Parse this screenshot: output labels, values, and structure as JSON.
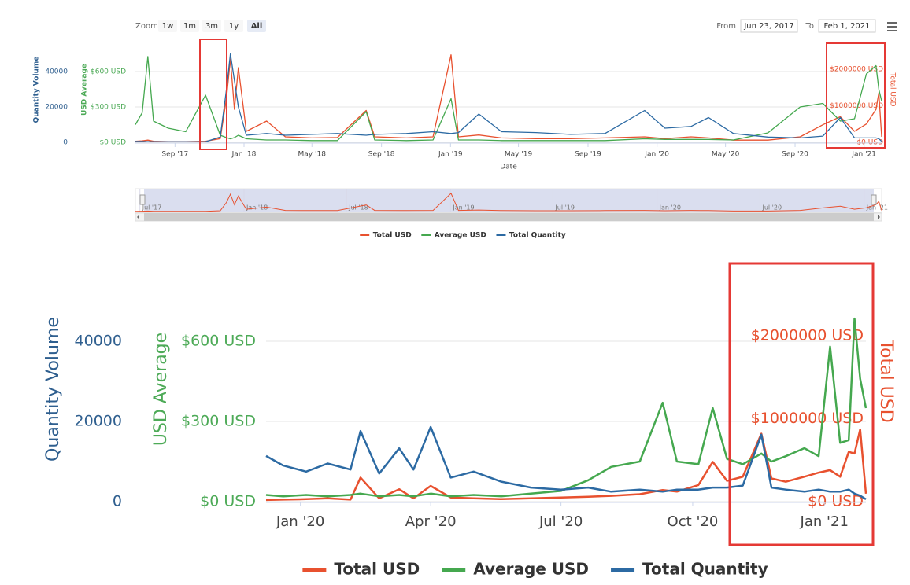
{
  "range_selector": {
    "zoom_label": "Zoom",
    "buttons": [
      "1w",
      "1m",
      "3m",
      "1y",
      "All"
    ],
    "selected": "All",
    "from_label": "From",
    "from": "Jun 23, 2017",
    "to_label": "To",
    "to": "Feb 1, 2021"
  },
  "chart_data": [
    {
      "type": "line",
      "x_title": "Date",
      "y_title": "Quantity Volume",
      "y3_title": "USD Average",
      "y2_title": "Total USD",
      "x": [
        "2017-06-23",
        "2017-07-05",
        "2017-07-15",
        "2017-07-25",
        "2017-08-20",
        "2017-09-20",
        "2017-10-25",
        "2017-11-20",
        "2017-12-01",
        "2017-12-08",
        "2017-12-15",
        "2017-12-22",
        "2018-01-05",
        "2018-02-10",
        "2018-03-15",
        "2018-05-01",
        "2018-06-15",
        "2018-08-05",
        "2018-08-20",
        "2018-10-15",
        "2018-12-01",
        "2019-01-02",
        "2019-01-15",
        "2019-02-20",
        "2019-04-01",
        "2019-06-01",
        "2019-08-01",
        "2019-10-01",
        "2019-12-10",
        "2020-01-15",
        "2020-03-01",
        "2020-04-01",
        "2020-05-15",
        "2020-07-15",
        "2020-09-10",
        "2020-10-20",
        "2020-11-20",
        "2020-12-15",
        "2021-01-05",
        "2021-01-22",
        "2021-01-27",
        "2021-02-01"
      ],
      "xlim": [
        "2017-06-23",
        "2021-02-01"
      ],
      "xticks": [
        {
          "value": "2017-09-01",
          "label": "Sep '17"
        },
        {
          "value": "2018-01-01",
          "label": "Jan '18"
        },
        {
          "value": "2018-05-01",
          "label": "May '18"
        },
        {
          "value": "2018-09-01",
          "label": "Sep '18"
        },
        {
          "value": "2019-01-01",
          "label": "Jan '19"
        },
        {
          "value": "2019-05-01",
          "label": "May '19"
        },
        {
          "value": "2019-09-01",
          "label": "Sep '19"
        },
        {
          "value": "2020-01-01",
          "label": "Jan '20"
        },
        {
          "value": "2020-05-01",
          "label": "May '20"
        },
        {
          "value": "2020-09-01",
          "label": "Sep '20"
        },
        {
          "value": "2021-01-01",
          "label": "Jan '21"
        }
      ],
      "ylim": [
        0,
        60000
      ],
      "yticks": [
        0,
        20000,
        40000
      ],
      "y3lim": [
        0,
        900
      ],
      "y3ticks": [
        {
          "value": 0,
          "label": "$0 USD"
        },
        {
          "value": 300,
          "label": "$300 USD"
        },
        {
          "value": 600,
          "label": "$600 USD"
        }
      ],
      "y2lim": [
        0,
        2900000
      ],
      "y2ticks": [
        {
          "value": 0,
          "label": "$0 USD"
        },
        {
          "value": 1000000,
          "label": "$1000000 USD"
        },
        {
          "value": 2000000,
          "label": "$2000000 USD"
        }
      ],
      "grid": true,
      "legend": "bottom",
      "series": [
        {
          "name": "Total USD",
          "color": "#e8512f",
          "axis": "y2",
          "values": [
            30000,
            40000,
            60000,
            30000,
            20000,
            20000,
            30000,
            100000,
            1200000,
            2280000,
            900000,
            2040000,
            300000,
            580000,
            150000,
            120000,
            130000,
            870000,
            150000,
            120000,
            150000,
            2390000,
            150000,
            200000,
            120000,
            100000,
            100000,
            120000,
            150000,
            100000,
            150000,
            120000,
            60000,
            60000,
            150000,
            480000,
            700000,
            300000,
            500000,
            900000,
            1350000,
            150000
          ]
        },
        {
          "name": "Average USD",
          "color": "#45a84f",
          "axis": "y3",
          "values": [
            150,
            250,
            727,
            180,
            120,
            90,
            400,
            60,
            40,
            30,
            40,
            60,
            30,
            20,
            20,
            15,
            15,
            260,
            20,
            15,
            20,
            370,
            20,
            20,
            15,
            15,
            15,
            15,
            30,
            25,
            25,
            25,
            20,
            80,
            300,
            330,
            180,
            200,
            580,
            650,
            450,
            350
          ]
        },
        {
          "name": "Total Quantity",
          "color": "#2c6aa3",
          "axis": "y",
          "values": [
            500,
            500,
            400,
            400,
            300,
            300,
            300,
            3000,
            30000,
            50000,
            35000,
            20000,
            4000,
            5000,
            4000,
            4500,
            5000,
            4000,
            4500,
            5000,
            6000,
            5000,
            5500,
            16000,
            6000,
            5500,
            4500,
            5000,
            18000,
            8000,
            9000,
            14000,
            5000,
            3000,
            2500,
            3500,
            14000,
            2500,
            2500,
            2500,
            2000,
            600
          ]
        }
      ],
      "navigator": {
        "xticks": [
          {
            "value": "2017-07-01",
            "label": "Jul '17"
          },
          {
            "value": "2018-01-01",
            "label": "Jan '18"
          },
          {
            "value": "2018-07-01",
            "label": "Jul '18"
          },
          {
            "value": "2019-01-01",
            "label": "Jan '19"
          },
          {
            "value": "2019-07-01",
            "label": "Jul '19"
          },
          {
            "value": "2020-01-01",
            "label": "Jan '20"
          },
          {
            "value": "2020-07-01",
            "label": "Jul '20"
          },
          {
            "value": "2021-01-01",
            "label": "Jan '21"
          }
        ]
      }
    },
    {
      "type": "line",
      "y_title": "Quantity Volume",
      "y3_title": "USD Average",
      "y2_title": "Total USD",
      "x": [
        "2019-12-08",
        "2019-12-20",
        "2020-01-05",
        "2020-01-20",
        "2020-02-05",
        "2020-02-12",
        "2020-02-25",
        "2020-03-10",
        "2020-03-20",
        "2020-04-01",
        "2020-04-15",
        "2020-05-01",
        "2020-05-20",
        "2020-06-10",
        "2020-07-01",
        "2020-07-20",
        "2020-08-05",
        "2020-08-25",
        "2020-09-10",
        "2020-09-20",
        "2020-10-05",
        "2020-10-15",
        "2020-10-25",
        "2020-11-05",
        "2020-11-18",
        "2020-11-25",
        "2020-12-05",
        "2020-12-18",
        "2020-12-28",
        "2021-01-05",
        "2021-01-12",
        "2021-01-18",
        "2021-01-22",
        "2021-01-26",
        "2021-01-30"
      ],
      "xlim": [
        "2019-12-08",
        "2021-01-30"
      ],
      "xticks": [
        {
          "value": "2020-01-01",
          "label": "Jan '20"
        },
        {
          "value": "2020-04-01",
          "label": "Apr '20"
        },
        {
          "value": "2020-07-01",
          "label": "Jul '20"
        },
        {
          "value": "2020-10-01",
          "label": "Oct '20"
        },
        {
          "value": "2021-01-01",
          "label": "Jan '21"
        }
      ],
      "ylim": [
        0,
        60000
      ],
      "yticks": [
        0,
        20000,
        40000
      ],
      "y3lim": [
        0,
        900
      ],
      "y3ticks": [
        {
          "value": 0,
          "label": "$0 USD"
        },
        {
          "value": 300,
          "label": "$300 USD"
        },
        {
          "value": 600,
          "label": "$600 USD"
        }
      ],
      "y2lim": [
        0,
        2900000
      ],
      "y2ticks": [
        {
          "value": 0,
          "label": "$0 USD"
        },
        {
          "value": 1000000,
          "label": "$1000000 USD"
        },
        {
          "value": 2000000,
          "label": "$2000000 USD"
        }
      ],
      "grid": true,
      "legend": "bottom",
      "series": [
        {
          "name": "Total USD",
          "color": "#e8512f",
          "axis": "y2",
          "values": [
            20000,
            25000,
            30000,
            40000,
            25000,
            290000,
            40000,
            150000,
            40000,
            190000,
            50000,
            40000,
            30000,
            40000,
            50000,
            60000,
            70000,
            90000,
            140000,
            120000,
            200000,
            480000,
            250000,
            300000,
            820000,
            280000,
            240000,
            300000,
            350000,
            380000,
            300000,
            600000,
            580000,
            870000,
            96000
          ]
        },
        {
          "name": "Average USD",
          "color": "#45a84f",
          "axis": "y3",
          "values": [
            25,
            20,
            25,
            20,
            25,
            30,
            20,
            25,
            20,
            30,
            20,
            25,
            20,
            30,
            40,
            80,
            130,
            150,
            370,
            150,
            140,
            350,
            160,
            140,
            180,
            150,
            170,
            200,
            170,
            580,
            220,
            230,
            685,
            460,
            350
          ]
        },
        {
          "name": "Total Quantity",
          "color": "#2c6aa3",
          "axis": "y",
          "values": [
            11400,
            9000,
            7500,
            9500,
            8000,
            17600,
            7000,
            13300,
            8000,
            18600,
            6000,
            7500,
            5000,
            3500,
            3000,
            3500,
            2500,
            3000,
            2500,
            3000,
            3000,
            3500,
            3500,
            4000,
            16700,
            3500,
            3000,
            2500,
            3000,
            2500,
            2500,
            3000,
            2000,
            1500,
            600
          ]
        }
      ]
    }
  ]
}
